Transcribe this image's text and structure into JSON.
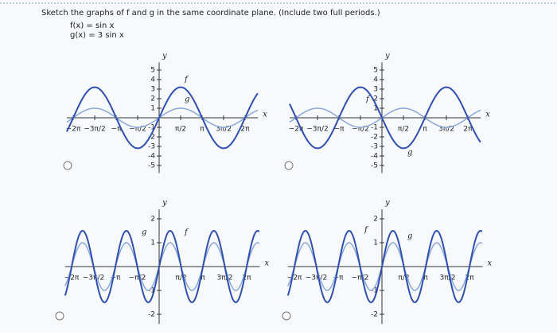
{
  "header": {
    "instruction": "Sketch the graphs of f and g in the same coordinate plane. (Include two full periods.)",
    "f": "f(x) = sin x",
    "g": "g(x) = 3 sin x"
  },
  "options": [
    {
      "x_axis": "x",
      "y_axis": "y",
      "x_labels": [
        "−2π",
        "−3π/2",
        "−π",
        "−π/2",
        "π/2",
        "π",
        "3π/2",
        "2π"
      ],
      "y_labels": [
        5,
        4,
        3,
        2,
        1,
        -1,
        -2,
        -3,
        -4,
        -5
      ],
      "curve_labels": [
        "f",
        "g"
      ]
    },
    {
      "x_axis": "x",
      "y_axis": "y",
      "x_labels": [
        "−2π",
        "−3π/2",
        "−π",
        "−π/2",
        "π/2",
        "π",
        "3π/2",
        "2π"
      ],
      "y_labels": [
        5,
        4,
        3,
        2,
        1,
        -1,
        -2,
        -3,
        -4,
        -5
      ],
      "curve_labels": [
        "f",
        "g"
      ]
    },
    {
      "x_axis": "x",
      "y_axis": "y",
      "x_labels": [
        "−2π",
        "−3π/2",
        "−π",
        "−π/2",
        "π/2",
        "π",
        "3π/2",
        "2π"
      ],
      "y_labels": [
        2,
        1,
        -1,
        -2
      ],
      "curve_labels": [
        "f",
        "g"
      ]
    },
    {
      "x_axis": "x",
      "y_axis": "y",
      "x_labels": [
        "−2π",
        "−3π/2",
        "−π",
        "−π/2",
        "π/2",
        "π",
        "3π/2",
        "2π"
      ],
      "y_labels": [
        2,
        1,
        -1,
        -2
      ],
      "curve_labels": [
        "f",
        "g"
      ]
    }
  ]
}
